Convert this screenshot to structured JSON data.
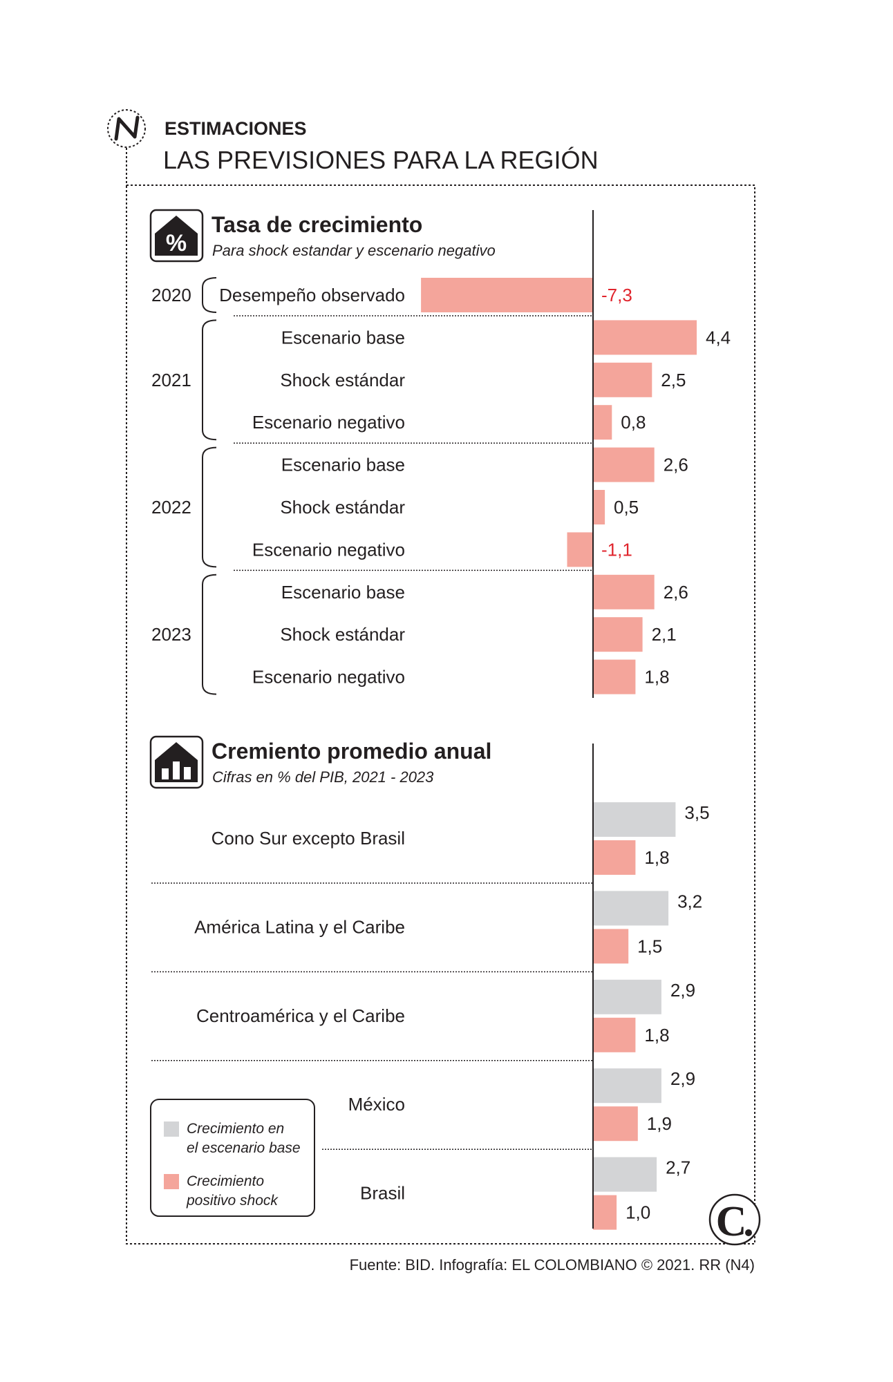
{
  "header": {
    "kicker": "ESTIMACIONES",
    "title": "LAS PREVISIONES PARA LA REGIÓN"
  },
  "colors": {
    "pink": "#f4a59b",
    "gray": "#d3d4d6",
    "negative_text": "#e0242c",
    "text": "#231f20"
  },
  "icons": {
    "header": "n-logo-icon",
    "section1": "percent-house-icon",
    "section2": "house-bars-icon",
    "brand": "el-colombiano-c-icon"
  },
  "chart_data": [
    {
      "type": "bar",
      "orientation": "horizontal",
      "title": "Tasa de crecimiento",
      "subtitle": "Para shock estandar y escenario negativo",
      "groups": [
        {
          "year": "2020",
          "rows": [
            {
              "label": "Desempeño observado",
              "value": -7.3,
              "display": "-7,3"
            }
          ]
        },
        {
          "year": "2021",
          "rows": [
            {
              "label": "Escenario base",
              "value": 4.4,
              "display": "4,4"
            },
            {
              "label": "Shock estándar",
              "value": 2.5,
              "display": "2,5"
            },
            {
              "label": "Escenario negativo",
              "value": 0.8,
              "display": "0,8"
            }
          ]
        },
        {
          "year": "2022",
          "rows": [
            {
              "label": "Escenario base",
              "value": 2.6,
              "display": "2,6"
            },
            {
              "label": "Shock estándar",
              "value": 0.5,
              "display": "0,5"
            },
            {
              "label": "Escenario negativo",
              "value": -1.1,
              "display": "-1,1"
            }
          ]
        },
        {
          "year": "2023",
          "rows": [
            {
              "label": "Escenario base",
              "value": 2.6,
              "display": "2,6"
            },
            {
              "label": "Shock estándar",
              "value": 2.1,
              "display": "2,1"
            },
            {
              "label": "Escenario negativo",
              "value": 1.8,
              "display": "1,8"
            }
          ]
        }
      ]
    },
    {
      "type": "bar",
      "orientation": "horizontal",
      "title": "Cremiento promedio anual",
      "subtitle": "Cifras en % del PIB, 2021 - 2023",
      "categories": [
        "Cono Sur excepto Brasil",
        "América Latina y el Caribe",
        "Centroamérica y el Caribe",
        "México",
        "Brasil"
      ],
      "series": [
        {
          "name": "Crecimiento en el escenario base",
          "legend_lines": [
            "Crecimiento en",
            "el escenario base"
          ],
          "color": "#d3d4d6",
          "values": [
            3.5,
            3.2,
            2.9,
            2.9,
            2.7
          ],
          "display": [
            "3,5",
            "3,2",
            "2,9",
            "2,9",
            "2,7"
          ]
        },
        {
          "name": "Crecimiento positivo shock",
          "legend_lines": [
            "Crecimiento",
            "positivo shock"
          ],
          "color": "#f4a59b",
          "values": [
            1.8,
            1.5,
            1.8,
            1.9,
            1.0
          ],
          "display": [
            "1,8",
            "1,5",
            "1,8",
            "1,9",
            "1,0"
          ]
        }
      ],
      "legend": "bottom-left"
    }
  ],
  "footer": {
    "source": "Fuente: BID. Infografía: EL COLOMBIANO © 2021. RR (N4)"
  }
}
